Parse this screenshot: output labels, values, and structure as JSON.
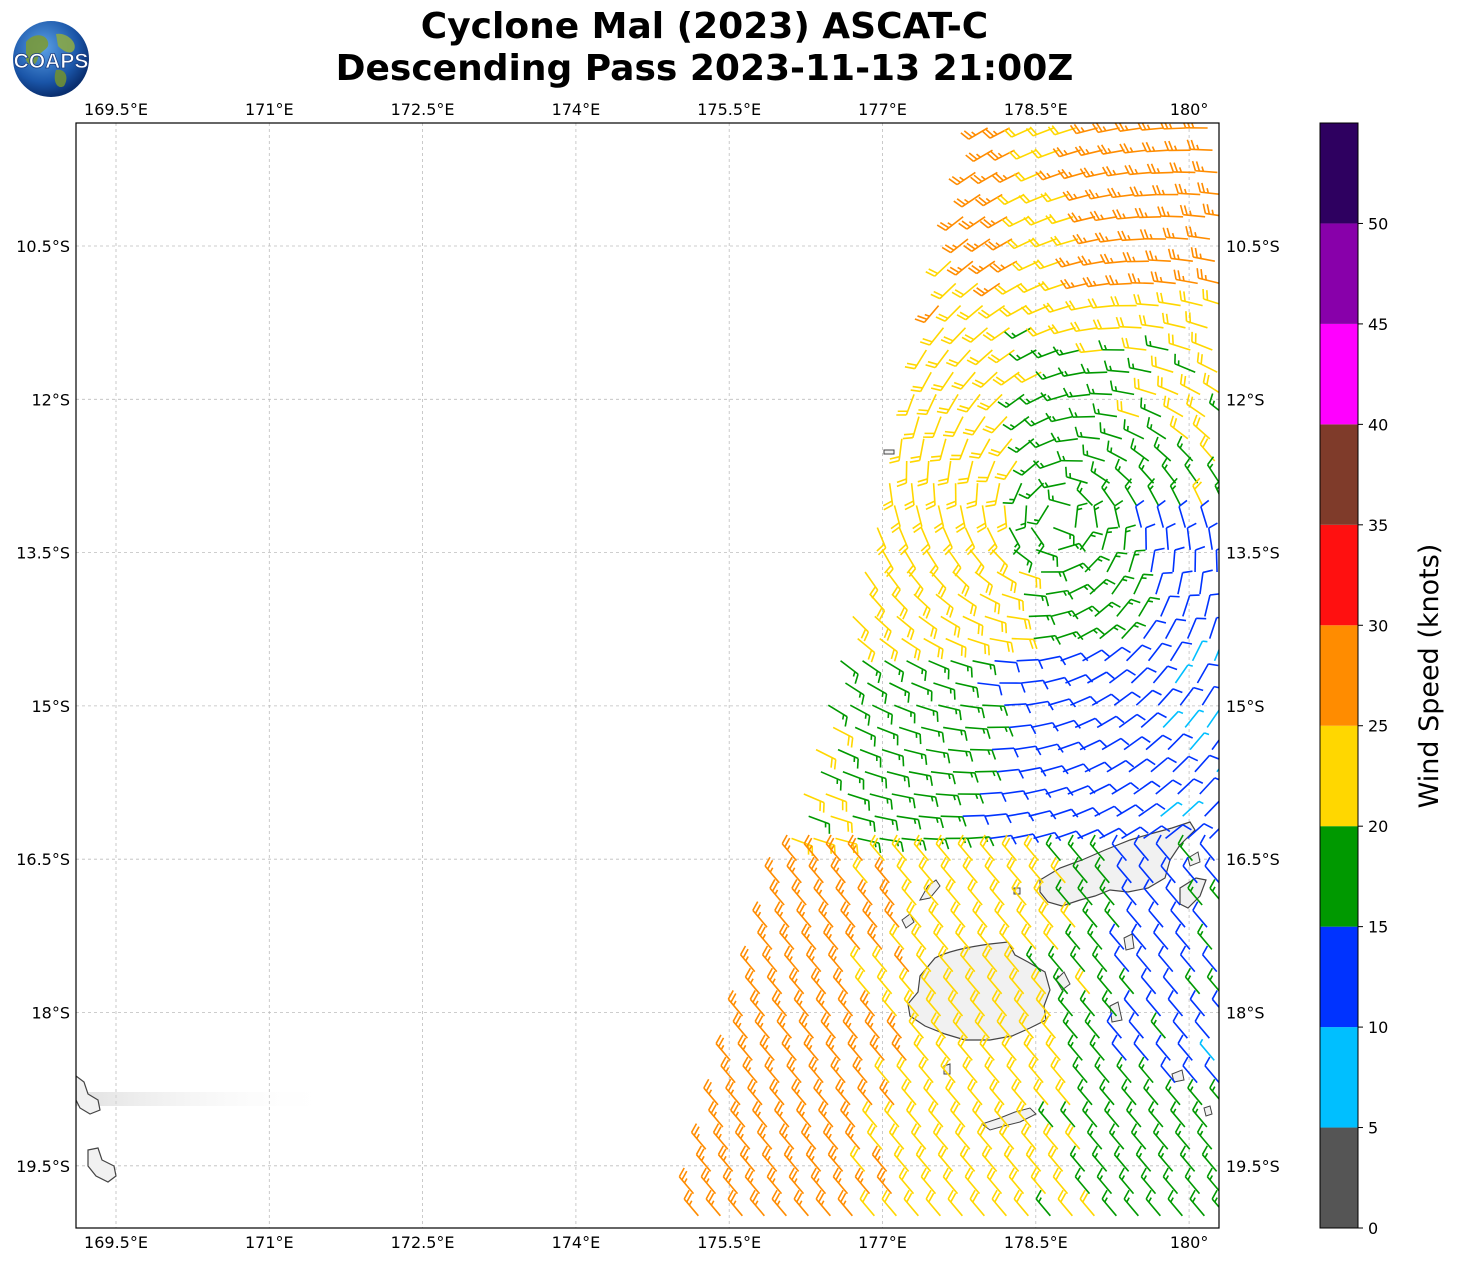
{
  "title": {
    "line1": "Cyclone Mal (2023) ASCAT-C",
    "line2": "Descending Pass 2023-11-13 21:00Z"
  },
  "logo": {
    "text": "COAPS",
    "icon": "globe-logo-icon"
  },
  "map": {
    "lon_range": [
      169.25,
      180.3
    ],
    "lat_range": [
      -20.1,
      -9.3
    ],
    "lon_ticks": [
      "169.5°E",
      "171°E",
      "172.5°E",
      "174°E",
      "175.5°E",
      "177°E",
      "178.5°E",
      "180°"
    ],
    "lat_ticks": [
      "10.5°S",
      "12°S",
      "13.5°S",
      "15°S",
      "16.5°S",
      "18°S",
      "19.5°S"
    ],
    "gridlines": true,
    "features": [
      "coastline",
      "wind-barbs"
    ]
  },
  "colorbar": {
    "label": "Wind Speed (knots)",
    "tick_labels": [
      "0",
      "5",
      "10",
      "15",
      "20",
      "25",
      "30",
      "35",
      "40",
      "45",
      "50"
    ],
    "bins": [
      {
        "from": 0,
        "to": 5,
        "color": "#555555"
      },
      {
        "from": 5,
        "to": 10,
        "color": "#00bfff"
      },
      {
        "from": 10,
        "to": 15,
        "color": "#0033ff"
      },
      {
        "from": 15,
        "to": 20,
        "color": "#009900"
      },
      {
        "from": 20,
        "to": 25,
        "color": "#ffd700"
      },
      {
        "from": 25,
        "to": 30,
        "color": "#ff8c00"
      },
      {
        "from": 30,
        "to": 35,
        "color": "#ff1010"
      },
      {
        "from": 35,
        "to": 40,
        "color": "#7f3b2a"
      },
      {
        "from": 40,
        "to": 45,
        "color": "#ff00ff"
      },
      {
        "from": 45,
        "to": 50,
        "color": "#8800aa"
      },
      {
        "from": 50,
        "to": 55,
        "color": "#2e0060"
      }
    ]
  }
}
